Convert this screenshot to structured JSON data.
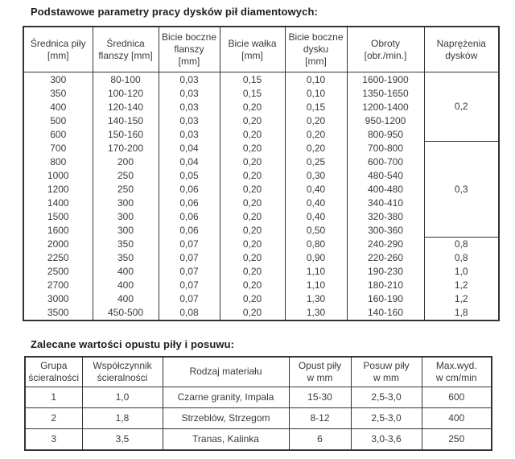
{
  "colors": {
    "background": "#ffffff",
    "text": "#3a3a3a",
    "title_text": "#1d1d1d",
    "border": "#333333"
  },
  "table1": {
    "title": "Podstawowe parametry pracy dysków pił diamentowych:",
    "headers": [
      "Średnica piły\n[mm]",
      "Średnica\nflanszy [mm]",
      "Bicie boczne\nflanszy\n[mm]",
      "Bicie wałka\n[mm]",
      "Bicie boczne\ndysku\n[mm]",
      "Obroty\n[obr./min.]",
      "Naprężenia\ndysków"
    ],
    "rows": [
      [
        "300",
        "80-100",
        "0,03",
        "0,15",
        "0,10",
        "1600-1900"
      ],
      [
        "350",
        "100-120",
        "0,03",
        "0,15",
        "0,10",
        "1350-1650"
      ],
      [
        "400",
        "120-140",
        "0,03",
        "0,20",
        "0,15",
        "1200-1400"
      ],
      [
        "500",
        "140-150",
        "0,03",
        "0,20",
        "0,20",
        "950-1200"
      ],
      [
        "600",
        "150-160",
        "0,03",
        "0,20",
        "0,20",
        "800-950"
      ],
      [
        "700",
        "170-200",
        "0,04",
        "0,20",
        "0,20",
        "700-800"
      ],
      [
        "800",
        "200",
        "0,04",
        "0,20",
        "0,25",
        "600-700"
      ],
      [
        "1000",
        "250",
        "0,05",
        "0,20",
        "0,30",
        "480-540"
      ],
      [
        "1200",
        "250",
        "0,06",
        "0,20",
        "0,40",
        "400-480"
      ],
      [
        "1400",
        "300",
        "0,06",
        "0,20",
        "0,40",
        "340-410"
      ],
      [
        "1500",
        "300",
        "0,06",
        "0,20",
        "0,40",
        "320-380"
      ],
      [
        "1600",
        "300",
        "0,06",
        "0,20",
        "0,50",
        "300-360"
      ],
      [
        "2000",
        "350",
        "0,07",
        "0,20",
        "0,80",
        "240-290"
      ],
      [
        "2250",
        "350",
        "0,07",
        "0,20",
        "0,90",
        "220-260"
      ],
      [
        "2500",
        "400",
        "0,07",
        "0,20",
        "1,10",
        "190-230"
      ],
      [
        "2700",
        "400",
        "0,07",
        "0,20",
        "1,10",
        "180-210"
      ],
      [
        "3000",
        "400",
        "0,07",
        "0,20",
        "1,30",
        "160-190"
      ],
      [
        "3500",
        "450-500",
        "0,08",
        "0,20",
        "1,30",
        "140-160"
      ]
    ],
    "tension": [
      {
        "rowspan": 5,
        "value": "0,2"
      },
      {
        "rowspan": 7,
        "value": "0,3"
      },
      {
        "values": [
          "0,8",
          "0,8",
          "1,0",
          "1,2",
          "1,2",
          "1,8"
        ]
      }
    ]
  },
  "table2": {
    "title": "Zalecane wartości opustu piły i posuwu:",
    "headers": [
      "Grupa\nścieralności",
      "Współczynnik\nścieralności",
      "Rodzaj materiału",
      "Opust piły\nw mm",
      "Posuw piły\nw mm",
      "Max.wyd.\nw cm/min"
    ],
    "rows": [
      [
        "1",
        "1,0",
        "Czarne granity, Impala",
        "15-30",
        "2,5-3,0",
        "600"
      ],
      [
        "2",
        "1,8",
        "Strzeblów, Strzegom",
        "8-12",
        "2,5-3,0",
        "400"
      ],
      [
        "3",
        "3,5",
        "Tranas, Kalinka",
        "6",
        "3,0-3,6",
        "250"
      ]
    ]
  }
}
